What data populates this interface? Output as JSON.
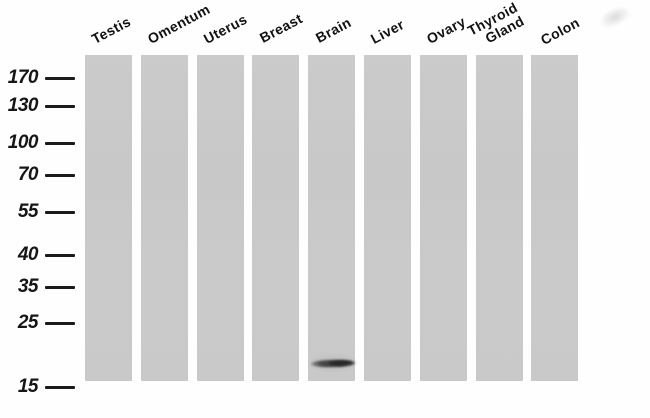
{
  "figure": {
    "kind": "western-blot",
    "lane_labels": [
      "Testis",
      "Omentum",
      "Uterus",
      "Breast",
      "Brain",
      "Liver",
      "Ovary",
      "Thyroid Gland",
      "Colon"
    ],
    "marker_labels": [
      "170",
      "130",
      "100",
      "70",
      "55",
      "40",
      "35",
      "25",
      "15"
    ],
    "band": {
      "lane": "Brain",
      "lane_index": 4
    },
    "colors": {
      "lane_gray": "#c9c9c9",
      "band_dark": "#2e2e2e",
      "text": "#141414",
      "background": "#fefefe"
    }
  }
}
